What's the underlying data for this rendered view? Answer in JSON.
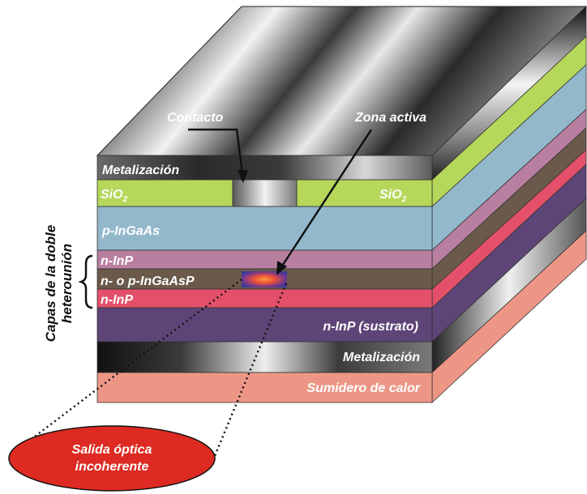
{
  "diagram": {
    "callouts": {
      "contact": "Contacto",
      "active_zone": "Zona activa"
    },
    "layers": {
      "metal_top": "Metalización",
      "sio2_left": "SiO",
      "sio2_right": "SiO",
      "sio2_sub": "2",
      "p_ingaas": "p-InGaAs",
      "n_inp_top": "n-InP",
      "active": "n- o p-InGaAsP",
      "n_inp_bottom": "n-InP",
      "substrate": "n-InP (sustrato)",
      "metal_bottom": "Metalización",
      "heatsink": "Sumidero de calor"
    },
    "side_label": {
      "line1": "Capas de la doble",
      "line2": "heterounión"
    },
    "output": {
      "line1": "Salida óptica",
      "line2": "incoherente"
    },
    "colors": {
      "sio2": "#b5d75a",
      "p_ingaas": "#93b8cc",
      "n_inp": "#b97fa0",
      "active": "#6b5a4b",
      "n_inp_red": "#e4506a",
      "substrate": "#5e4577",
      "heatsink": "#ee9686",
      "ellipse": "#dd2a22"
    }
  }
}
